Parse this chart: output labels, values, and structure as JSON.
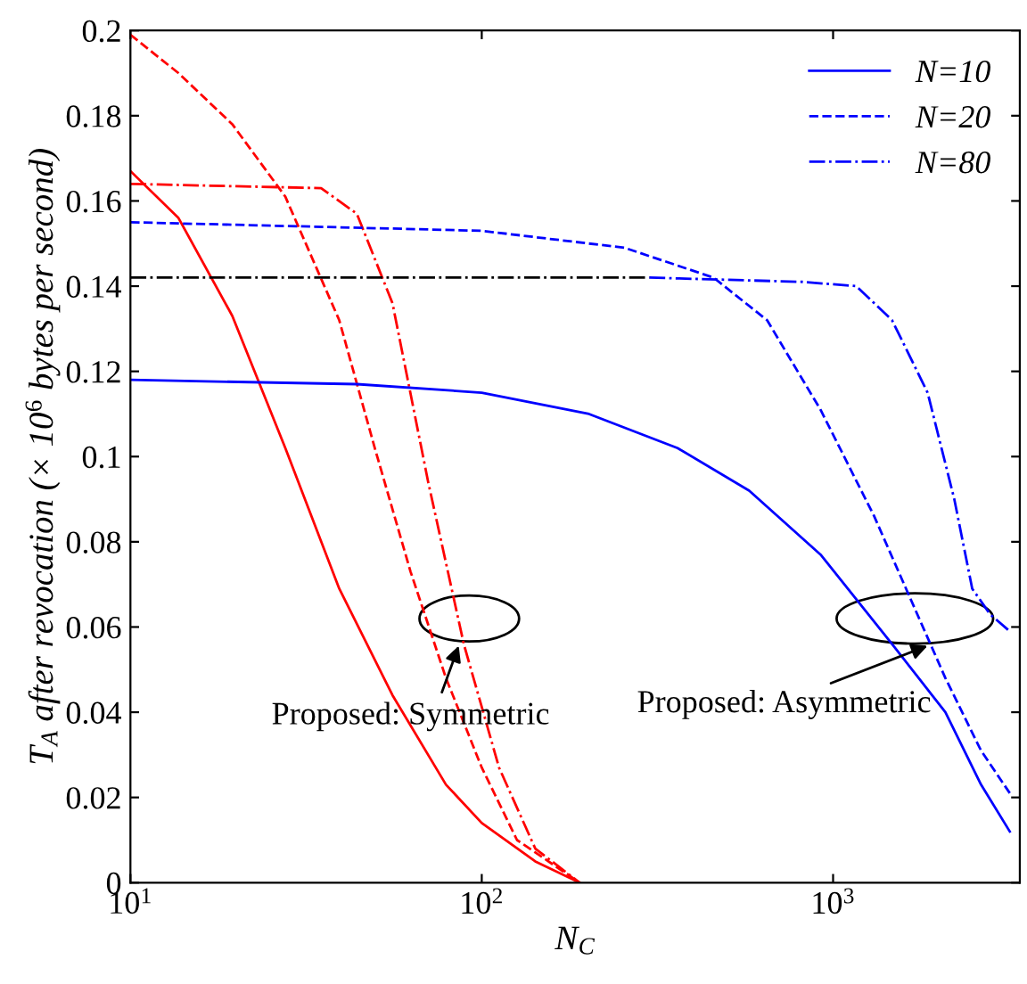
{
  "chart_data": {
    "type": "line",
    "xlabel": "N$_{C}$",
    "ylabel": "T$_{A}$ after revocation (× 10$^{6}$ bytes per second)",
    "log": "x",
    "xlim": [
      10,
      3400
    ],
    "ylim": [
      0,
      0.2
    ],
    "xticks": [
      {
        "value": 10,
        "label": "10$^{1}$"
      },
      {
        "value": 100,
        "label": "10$^{2}$"
      },
      {
        "value": 1000,
        "label": "10$^{3}$"
      }
    ],
    "yticks": [
      0,
      0.02,
      0.04,
      0.06,
      0.08,
      0.1,
      0.12,
      0.14,
      0.16,
      0.18,
      0.2
    ],
    "grid": false,
    "legend": "top right",
    "series": [
      {
        "color": "#ff0000",
        "line_style": "solid",
        "x": [
          10,
          13.7,
          19.5,
          27.6,
          39.3,
          55.7,
          79.1,
          100,
          142,
          190
        ],
        "values": [
          0.167,
          0.156,
          0.133,
          0.102,
          0.069,
          0.044,
          0.023,
          0.014,
          0.005,
          0
        ]
      },
      {
        "color": "#ff0000",
        "line_style": "dashed",
        "x": [
          10,
          13.7,
          19.5,
          27.6,
          39.3,
          49.6,
          62.7,
          79.1,
          100,
          126,
          190
        ],
        "values": [
          0.199,
          0.19,
          0.178,
          0.161,
          0.132,
          0.102,
          0.073,
          0.048,
          0.027,
          0.01,
          0
        ]
      },
      {
        "color": "#ff0000",
        "line_style": "dashdot",
        "x": [
          10,
          34.9,
          44.1,
          55.7,
          70.4,
          88.9,
          112,
          142,
          190
        ],
        "values": [
          0.164,
          0.163,
          0.157,
          0.136,
          0.094,
          0.056,
          0.027,
          0.008,
          0
        ]
      },
      {
        "name": "N=10",
        "color": "#0000ff",
        "line_style": "solid",
        "x": [
          10,
          44.1,
          100,
          202,
          361,
          577,
          921,
          1472,
          2088,
          2637,
          3184
        ],
        "values": [
          0.118,
          0.117,
          0.115,
          0.11,
          0.102,
          0.092,
          0.077,
          0.056,
          0.04,
          0.023,
          0.012
        ]
      },
      {
        "name": "N=20",
        "color": "#0000ff",
        "line_style": "dashed",
        "x": [
          10,
          100,
          255,
          457,
          649,
          921,
          1309,
          1653,
          2088,
          2637,
          3184
        ],
        "values": [
          0.155,
          0.153,
          0.149,
          0.142,
          0.132,
          0.111,
          0.086,
          0.067,
          0.048,
          0.031,
          0.021
        ]
      },
      {
        "color": "#000000",
        "line_style": "dashdot",
        "x": [
          10,
          300
        ],
        "values": [
          0.142,
          0.142
        ]
      },
      {
        "name": "N=80",
        "color": "#0000ff",
        "line_style": "dashdot",
        "x": [
          300,
          820,
          1164,
          1472,
          1858,
          2213,
          2489,
          2797,
          3184
        ],
        "values": [
          0.142,
          0.141,
          0.14,
          0.132,
          0.115,
          0.09,
          0.069,
          0.063,
          0.059
        ]
      }
    ],
    "annotations": [
      {
        "text": "Proposed: Symmetric",
        "x": 86,
        "y": 0.0556
      },
      {
        "text": "Proposed: Asymmetric",
        "x": 1858,
        "y": 0.0556
      }
    ]
  }
}
